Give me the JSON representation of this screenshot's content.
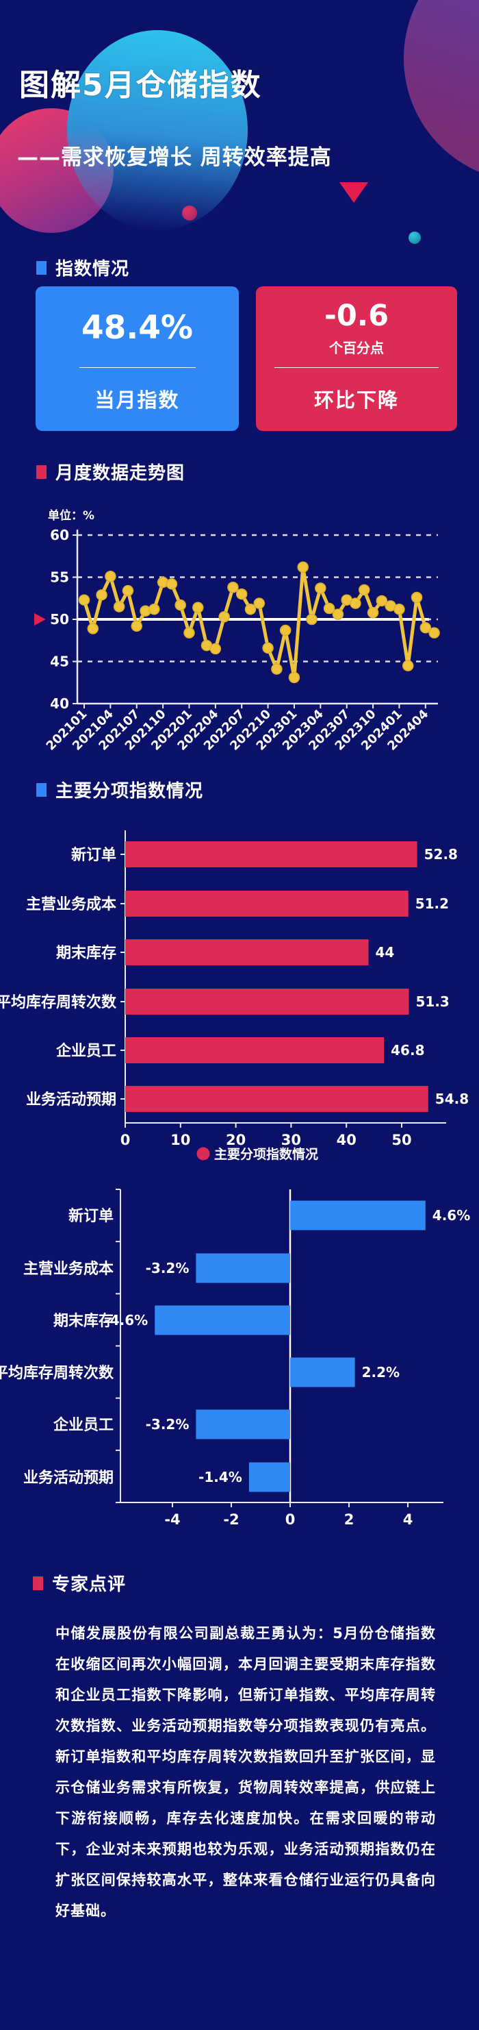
{
  "page": {
    "title": "图解5月仓储指数",
    "subtitle": "——需求恢复增长 周转效率提高"
  },
  "colors": {
    "background": "#0b1168",
    "accent_blue": "#2f88f6",
    "accent_red": "#de2b56",
    "line_yellow": "#f0c33c",
    "bar_blue": "#2f8af5",
    "text": "#ffffff"
  },
  "sections": {
    "index_overview": {
      "label": "指数情况"
    },
    "monthly_trend": {
      "label": "月度数据走势图"
    },
    "sub_indices": {
      "label": "主要分项指数情况"
    },
    "expert_review": {
      "label": "专家点评"
    }
  },
  "cards": {
    "current": {
      "value": "48.4%",
      "label": "当月指数"
    },
    "change": {
      "value": "-0.6",
      "unit": "个百分点",
      "label": "环比下降"
    }
  },
  "chart_data": [
    {
      "type": "line",
      "name": "月度数据走势图",
      "unit_label": "单位：%",
      "x": [
        "202101",
        "202102",
        "202103",
        "202104",
        "202105",
        "202106",
        "202107",
        "202108",
        "202109",
        "202110",
        "202111",
        "202112",
        "202201",
        "202202",
        "202203",
        "202204",
        "202205",
        "202206",
        "202207",
        "202208",
        "202209",
        "202210",
        "202211",
        "202212",
        "202301",
        "202302",
        "202303",
        "202304",
        "202305",
        "202306",
        "202307",
        "202308",
        "202309",
        "202310",
        "202311",
        "202312",
        "202401",
        "202402",
        "202403",
        "202404",
        "202405"
      ],
      "values": [
        52.3,
        48.9,
        52.9,
        55.1,
        51.5,
        53.4,
        49.2,
        51.0,
        51.2,
        54.4,
        54.2,
        51.7,
        48.4,
        51.4,
        46.9,
        46.5,
        50.3,
        53.8,
        53.0,
        51.2,
        51.9,
        46.6,
        44.1,
        48.7,
        43.1,
        56.2,
        50.0,
        53.7,
        51.3,
        50.6,
        52.3,
        51.9,
        53.5,
        50.8,
        52.2,
        51.6,
        51.2,
        44.5,
        52.6,
        49.0,
        48.4
      ],
      "ylim": [
        40,
        60
      ],
      "yticks": [
        40,
        45,
        50,
        55,
        60
      ],
      "xtick_every": 3,
      "reference_line": 50,
      "grid": "dashed-horizontal",
      "line_color": "#f0c33c",
      "pointer_color": "#e0234f"
    },
    {
      "type": "bar",
      "orientation": "horizontal",
      "categories": [
        "新订单",
        "主营业务成本",
        "期末库存",
        "平均库存周转次数",
        "企业员工",
        "业务活动预期"
      ],
      "values": [
        52.8,
        51.2,
        44,
        51.3,
        46.8,
        54.8
      ],
      "value_labels": [
        "52.8",
        "51.2",
        "44",
        "51.3",
        "46.8",
        "54.8"
      ],
      "xticks": [
        0,
        10,
        20,
        30,
        40,
        50
      ],
      "xlim": [
        0,
        55.5
      ],
      "bar_color": "#de2b56",
      "legend": {
        "label": "主要分项指数情况",
        "color": "#de2b56"
      }
    },
    {
      "type": "bar",
      "orientation": "horizontal",
      "categories": [
        "新订单",
        "主营业务成本",
        "期末库存",
        "平均库存周转次数",
        "企业员工",
        "业务活动预期"
      ],
      "values": [
        4.6,
        -3.2,
        -4.6,
        2.2,
        -3.2,
        -1.4
      ],
      "value_labels": [
        "4.6%",
        "-3.2%",
        "-4.6%",
        "2.2%",
        "-3.2%",
        "-1.4%"
      ],
      "xticks": [
        -4,
        -2,
        0,
        2,
        4
      ],
      "xlim": [
        -5.2,
        5.2
      ],
      "bar_color": "#2f8af5"
    }
  ],
  "expert": {
    "paragraph": "中储发展股份有限公司副总裁王勇认为：5月份仓储指数在收缩区间再次小幅回调，本月回调主要受期末库存指数和企业员工指数下降影响，但新订单指数、平均库存周转次数指数、业务活动预期指数等分项指数表现仍有亮点。新订单指数和平均库存周转次数指数回升至扩张区间，显示仓储业务需求有所恢复，货物周转效率提高，供应链上下游衔接顺畅，库存去化速度加快。在需求回暖的带动下，企业对未来预期也较为乐观，业务活动预期指数仍在扩张区间保持较高水平，整体来看仓储行业运行仍具备向好基础。"
  }
}
